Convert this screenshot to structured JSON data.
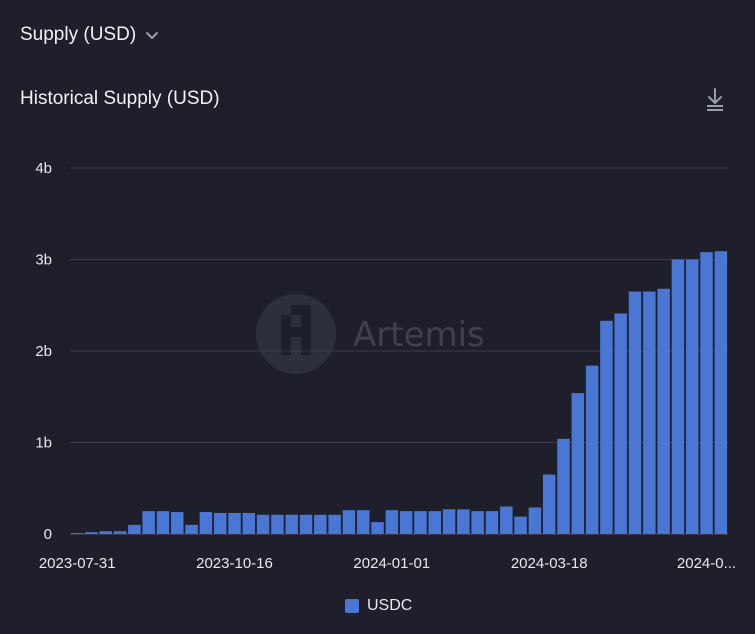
{
  "header": {
    "metric_selector_label": "Supply (USD)",
    "chart_title": "Historical Supply (USD)"
  },
  "watermark": {
    "text": "Artemis"
  },
  "colors": {
    "background": "#1e1f2a",
    "bar": "#4a77d4",
    "grid": "#3a3c4a",
    "text": "#e8e9ee"
  },
  "chart_data": {
    "type": "bar",
    "title": "Historical Supply (USD)",
    "y_ticks": [
      {
        "value": 0,
        "label": "0"
      },
      {
        "value": 1000000000,
        "label": "1b"
      },
      {
        "value": 2000000000,
        "label": "2b"
      },
      {
        "value": 3000000000,
        "label": "3b"
      },
      {
        "value": 4000000000,
        "label": "4b"
      }
    ],
    "ylim": [
      0,
      4000000000
    ],
    "x_ticks": [
      {
        "index": 0,
        "label": "2023-07-31"
      },
      {
        "index": 11,
        "label": "2023-10-16"
      },
      {
        "index": 22,
        "label": "2024-01-01"
      },
      {
        "index": 33,
        "label": "2024-03-18"
      },
      {
        "index": 44,
        "label": "2024-0..."
      }
    ],
    "grid": true,
    "legend_position": "bottom-center",
    "series": [
      {
        "name": "USDC",
        "values": [
          10000000,
          20000000,
          30000000,
          30000000,
          100000000,
          250000000,
          250000000,
          240000000,
          100000000,
          240000000,
          230000000,
          230000000,
          230000000,
          210000000,
          210000000,
          210000000,
          210000000,
          210000000,
          210000000,
          260000000,
          260000000,
          130000000,
          260000000,
          250000000,
          250000000,
          250000000,
          270000000,
          270000000,
          250000000,
          250000000,
          300000000,
          190000000,
          290000000,
          650000000,
          1040000000,
          1540000000,
          1840000000,
          2330000000,
          2410000000,
          2650000000,
          2650000000,
          2680000000,
          3000000000,
          3000000000,
          3080000000,
          3090000000
        ]
      }
    ]
  }
}
